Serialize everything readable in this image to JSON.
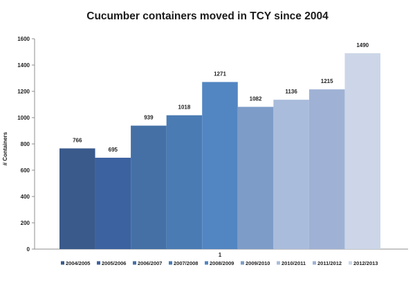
{
  "chart_data": {
    "type": "bar",
    "title": "Cucumber containers moved in TCY since 2004",
    "xlabel": "",
    "ylabel": "# Containers",
    "category_label": "1",
    "ylim": [
      0,
      1600
    ],
    "yticks": [
      0,
      200,
      400,
      600,
      800,
      1000,
      1200,
      1400,
      1600
    ],
    "grid": false,
    "legend_position": "bottom",
    "series": [
      {
        "name": "2004/2005",
        "value": 766,
        "color": "#3a5a8c"
      },
      {
        "name": "2005/2006",
        "value": 695,
        "color": "#3d62a0"
      },
      {
        "name": "2006/2007",
        "value": 939,
        "color": "#4470a6"
      },
      {
        "name": "2007/2008",
        "value": 1018,
        "color": "#4a7bb3"
      },
      {
        "name": "2008/2009",
        "value": 1271,
        "color": "#5286c2"
      },
      {
        "name": "2009/2010",
        "value": 1082,
        "color": "#7e9cc8"
      },
      {
        "name": "2010/2011",
        "value": 1136,
        "color": "#a9bcdb"
      },
      {
        "name": "2011/2012",
        "value": 1215,
        "color": "#9fb2d5"
      },
      {
        "name": "2012/2013",
        "value": 1490,
        "color": "#ccd6e8"
      }
    ]
  }
}
